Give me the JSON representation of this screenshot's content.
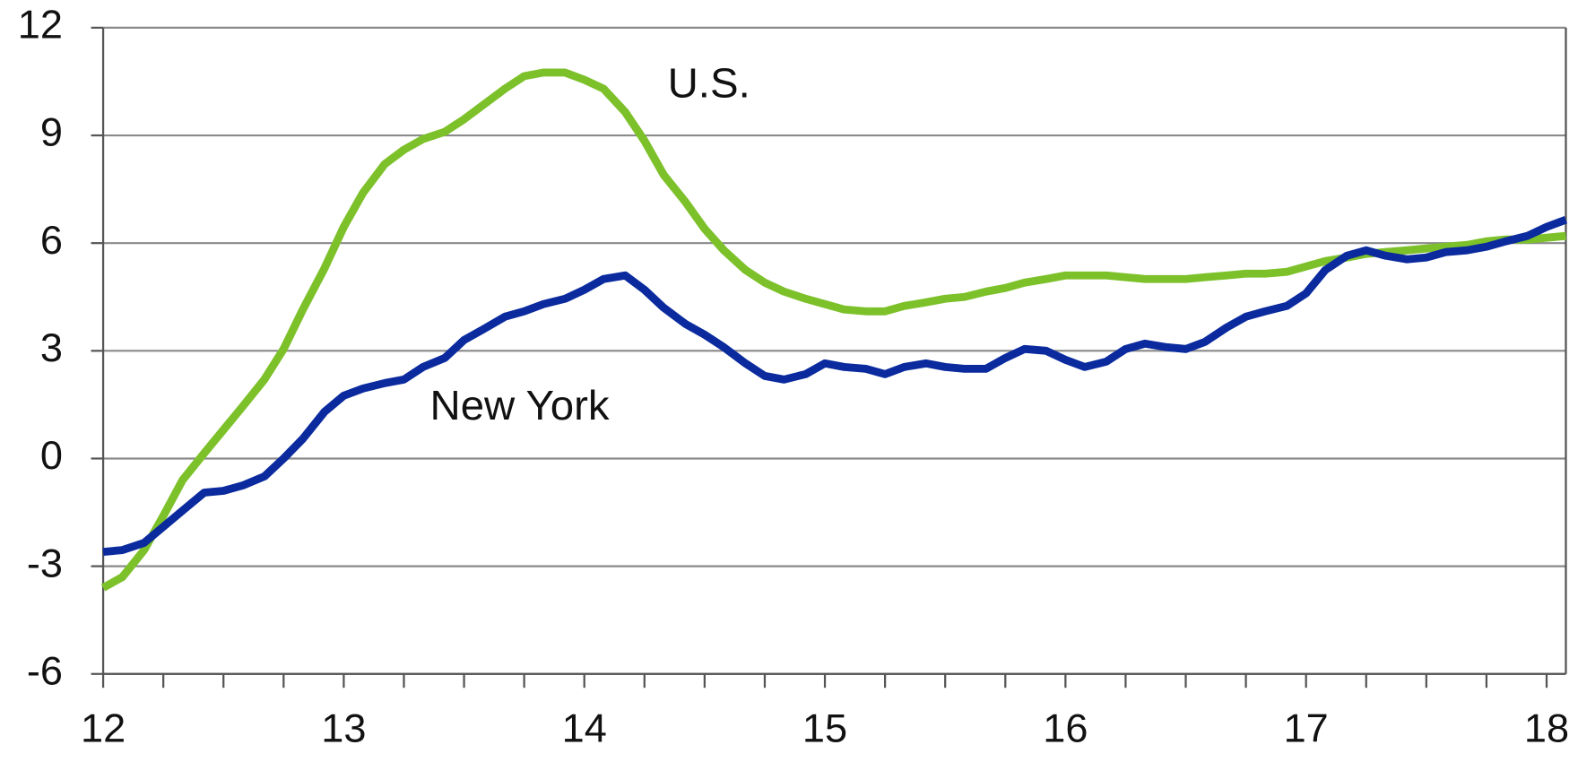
{
  "chart_data": {
    "type": "line",
    "x": [
      12,
      12.08,
      12.17,
      12.25,
      12.33,
      12.42,
      12.5,
      12.58,
      12.67,
      12.75,
      12.83,
      12.92,
      13,
      13.08,
      13.17,
      13.25,
      13.33,
      13.42,
      13.5,
      13.58,
      13.67,
      13.75,
      13.83,
      13.92,
      14,
      14.08,
      14.17,
      14.25,
      14.33,
      14.42,
      14.5,
      14.58,
      14.67,
      14.75,
      14.83,
      14.92,
      15,
      15.08,
      15.17,
      15.25,
      15.33,
      15.42,
      15.5,
      15.58,
      15.67,
      15.75,
      15.83,
      15.92,
      16,
      16.08,
      16.17,
      16.25,
      16.33,
      16.42,
      16.5,
      16.58,
      16.67,
      16.75,
      16.83,
      16.92,
      17,
      17.08,
      17.17,
      17.25,
      17.33,
      17.42,
      17.5,
      17.58,
      17.67,
      17.75,
      17.83,
      17.92,
      18,
      18.08
    ],
    "series": [
      {
        "name": "U.S.",
        "color": "#7dc12a",
        "values": [
          -3.6,
          -3.3,
          -2.55,
          -1.6,
          -0.6,
          0.15,
          0.8,
          1.45,
          2.2,
          3.05,
          4.15,
          5.3,
          6.45,
          7.4,
          8.2,
          8.6,
          8.9,
          9.1,
          9.45,
          9.85,
          10.3,
          10.65,
          10.75,
          10.75,
          10.55,
          10.3,
          9.65,
          8.85,
          7.9,
          7.15,
          6.4,
          5.8,
          5.25,
          4.9,
          4.65,
          4.45,
          4.3,
          4.15,
          4.1,
          4.1,
          4.25,
          4.35,
          4.45,
          4.5,
          4.65,
          4.75,
          4.9,
          5.0,
          5.1,
          5.1,
          5.1,
          5.05,
          5.0,
          5.0,
          5.0,
          5.05,
          5.1,
          5.15,
          5.15,
          5.2,
          5.35,
          5.5,
          5.6,
          5.7,
          5.75,
          5.8,
          5.85,
          5.9,
          5.95,
          6.05,
          6.1,
          6.1,
          6.15,
          6.2
        ]
      },
      {
        "name": "New York",
        "color": "#0a2a9e",
        "values": [
          -2.6,
          -2.55,
          -2.35,
          -1.9,
          -1.45,
          -0.95,
          -0.9,
          -0.75,
          -0.5,
          0.0,
          0.55,
          1.3,
          1.75,
          1.95,
          2.1,
          2.2,
          2.55,
          2.8,
          3.3,
          3.6,
          3.95,
          4.1,
          4.3,
          4.45,
          4.7,
          5.0,
          5.1,
          4.7,
          4.2,
          3.75,
          3.45,
          3.1,
          2.65,
          2.3,
          2.2,
          2.35,
          2.65,
          2.55,
          2.5,
          2.35,
          2.55,
          2.65,
          2.55,
          2.5,
          2.5,
          2.8,
          3.05,
          3.0,
          2.75,
          2.55,
          2.7,
          3.05,
          3.2,
          3.1,
          3.05,
          3.25,
          3.65,
          3.95,
          4.1,
          4.25,
          4.6,
          5.25,
          5.65,
          5.8,
          5.65,
          5.55,
          5.6,
          5.75,
          5.8,
          5.9,
          6.05,
          6.2,
          6.45,
          6.65
        ]
      }
    ],
    "xlim": [
      12,
      18.08
    ],
    "xticks": [
      12,
      13,
      14,
      15,
      16,
      17,
      18
    ],
    "xminorticks": [
      12.25,
      12.5,
      12.75,
      13.25,
      13.5,
      13.75,
      14.25,
      14.5,
      14.75,
      15.25,
      15.5,
      15.75,
      16.25,
      16.5,
      16.75,
      17.25,
      17.5,
      17.75
    ],
    "ylim": [
      -6,
      12
    ],
    "yticks": [
      -6,
      -3,
      0,
      3,
      6,
      9,
      12
    ],
    "grid": true
  }
}
